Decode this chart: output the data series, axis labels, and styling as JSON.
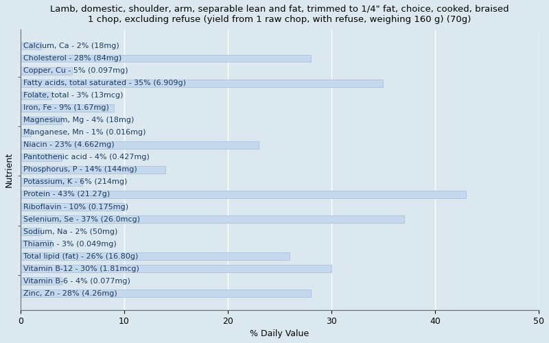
{
  "title": "Lamb, domestic, shoulder, arm, separable lean and fat, trimmed to 1/4\" fat, choice, cooked, braised\n1 chop, excluding refuse (yield from 1 raw chop, with refuse, weighing 160 g) (70g)",
  "xlabel": "% Daily Value",
  "ylabel": "Nutrient",
  "xlim": [
    0,
    50
  ],
  "xticks": [
    0,
    10,
    20,
    30,
    40,
    50
  ],
  "background_color": "#dce8f0",
  "plot_bg_color": "#dce8f0",
  "bar_color": "#c5d8ee",
  "bar_edge_color": "#a0bcd8",
  "text_color": "#1a3a5c",
  "nutrients": [
    {
      "label": "Calcium, Ca - 2% (18mg)",
      "value": 2
    },
    {
      "label": "Cholesterol - 28% (84mg)",
      "value": 28
    },
    {
      "label": "Copper, Cu - 5% (0.097mg)",
      "value": 5
    },
    {
      "label": "Fatty acids, total saturated - 35% (6.909g)",
      "value": 35
    },
    {
      "label": "Folate, total - 3% (13mcg)",
      "value": 3
    },
    {
      "label": "Iron, Fe - 9% (1.67mg)",
      "value": 9
    },
    {
      "label": "Magnesium, Mg - 4% (18mg)",
      "value": 4
    },
    {
      "label": "Manganese, Mn - 1% (0.016mg)",
      "value": 1
    },
    {
      "label": "Niacin - 23% (4.662mg)",
      "value": 23
    },
    {
      "label": "Pantothenic acid - 4% (0.427mg)",
      "value": 4
    },
    {
      "label": "Phosphorus, P - 14% (144mg)",
      "value": 14
    },
    {
      "label": "Potassium, K - 6% (214mg)",
      "value": 6
    },
    {
      "label": "Protein - 43% (21.27g)",
      "value": 43
    },
    {
      "label": "Riboflavin - 10% (0.175mg)",
      "value": 10
    },
    {
      "label": "Selenium, Se - 37% (26.0mcg)",
      "value": 37
    },
    {
      "label": "Sodium, Na - 2% (50mg)",
      "value": 2
    },
    {
      "label": "Thiamin - 3% (0.049mg)",
      "value": 3
    },
    {
      "label": "Total lipid (fat) - 26% (16.80g)",
      "value": 26
    },
    {
      "label": "Vitamin B-12 - 30% (1.81mcg)",
      "value": 30
    },
    {
      "label": "Vitamin B-6 - 4% (0.077mg)",
      "value": 4
    },
    {
      "label": "Zinc, Zn - 28% (4.26mg)",
      "value": 28
    }
  ],
  "title_fontsize": 9.5,
  "axis_label_fontsize": 9,
  "tick_fontsize": 9,
  "bar_label_fontsize": 8,
  "bar_height": 0.6,
  "figsize": [
    8.0,
    5.0
  ],
  "dpi": 100
}
